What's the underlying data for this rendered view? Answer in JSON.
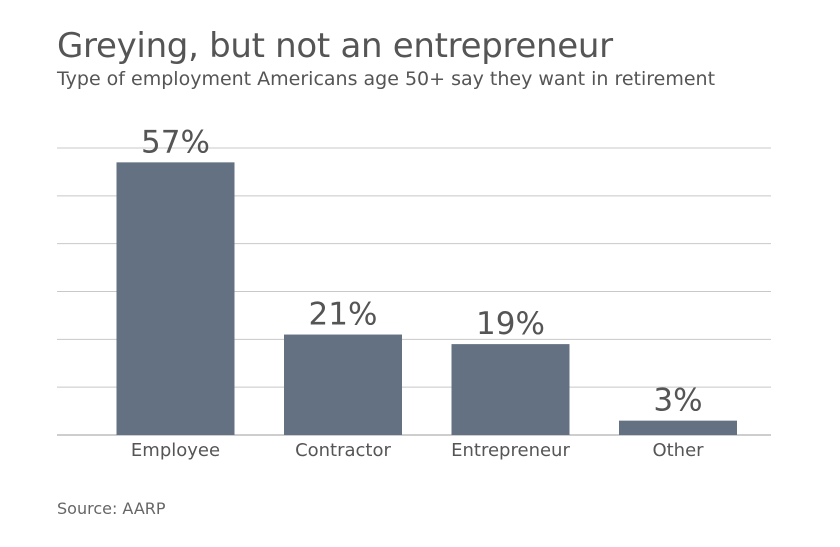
{
  "chart_data": {
    "type": "bar",
    "title": "Greying, but not an entrepreneur",
    "subtitle": "Type of employment Americans age 50+ say they want in retirement",
    "categories": [
      "Employee",
      "Contractor",
      "Entrepreneur",
      "Other"
    ],
    "values": [
      57,
      21,
      19,
      3
    ],
    "data_labels": [
      "57%",
      "21%",
      "19%",
      "3%"
    ],
    "ylim": [
      0,
      60
    ],
    "grid": true,
    "source": "Source: AARP",
    "colors": {
      "bar": "#637182",
      "gridline": "#c8c8c8",
      "text": "#555555"
    }
  }
}
